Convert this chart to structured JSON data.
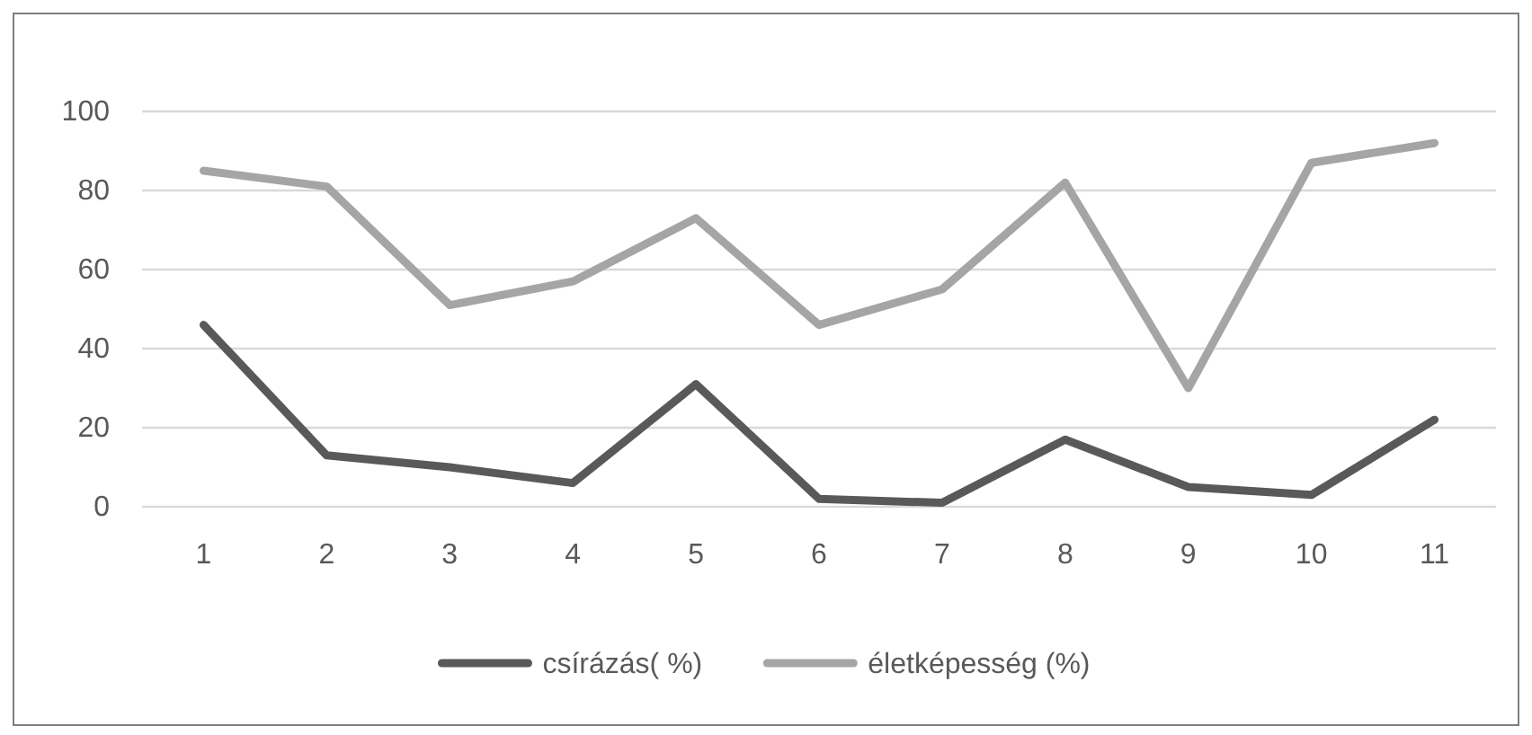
{
  "chart_data": {
    "type": "line",
    "categories": [
      "1",
      "2",
      "3",
      "4",
      "5",
      "6",
      "7",
      "8",
      "9",
      "10",
      "11"
    ],
    "series": [
      {
        "name": "csírázás( %)",
        "color": "#595959",
        "values": [
          46,
          13,
          10,
          6,
          31,
          2,
          1,
          17,
          5,
          3,
          22
        ]
      },
      {
        "name": "életképesség (%)",
        "color": "#a5a5a5",
        "values": [
          85,
          81,
          51,
          57,
          73,
          46,
          55,
          82,
          30,
          87,
          92
        ]
      }
    ],
    "ylim": [
      0,
      100
    ],
    "yticks": [
      0,
      20,
      40,
      60,
      80,
      100
    ],
    "grid": "y",
    "legend": "bottom",
    "line_style": "solid",
    "marker": "none"
  }
}
